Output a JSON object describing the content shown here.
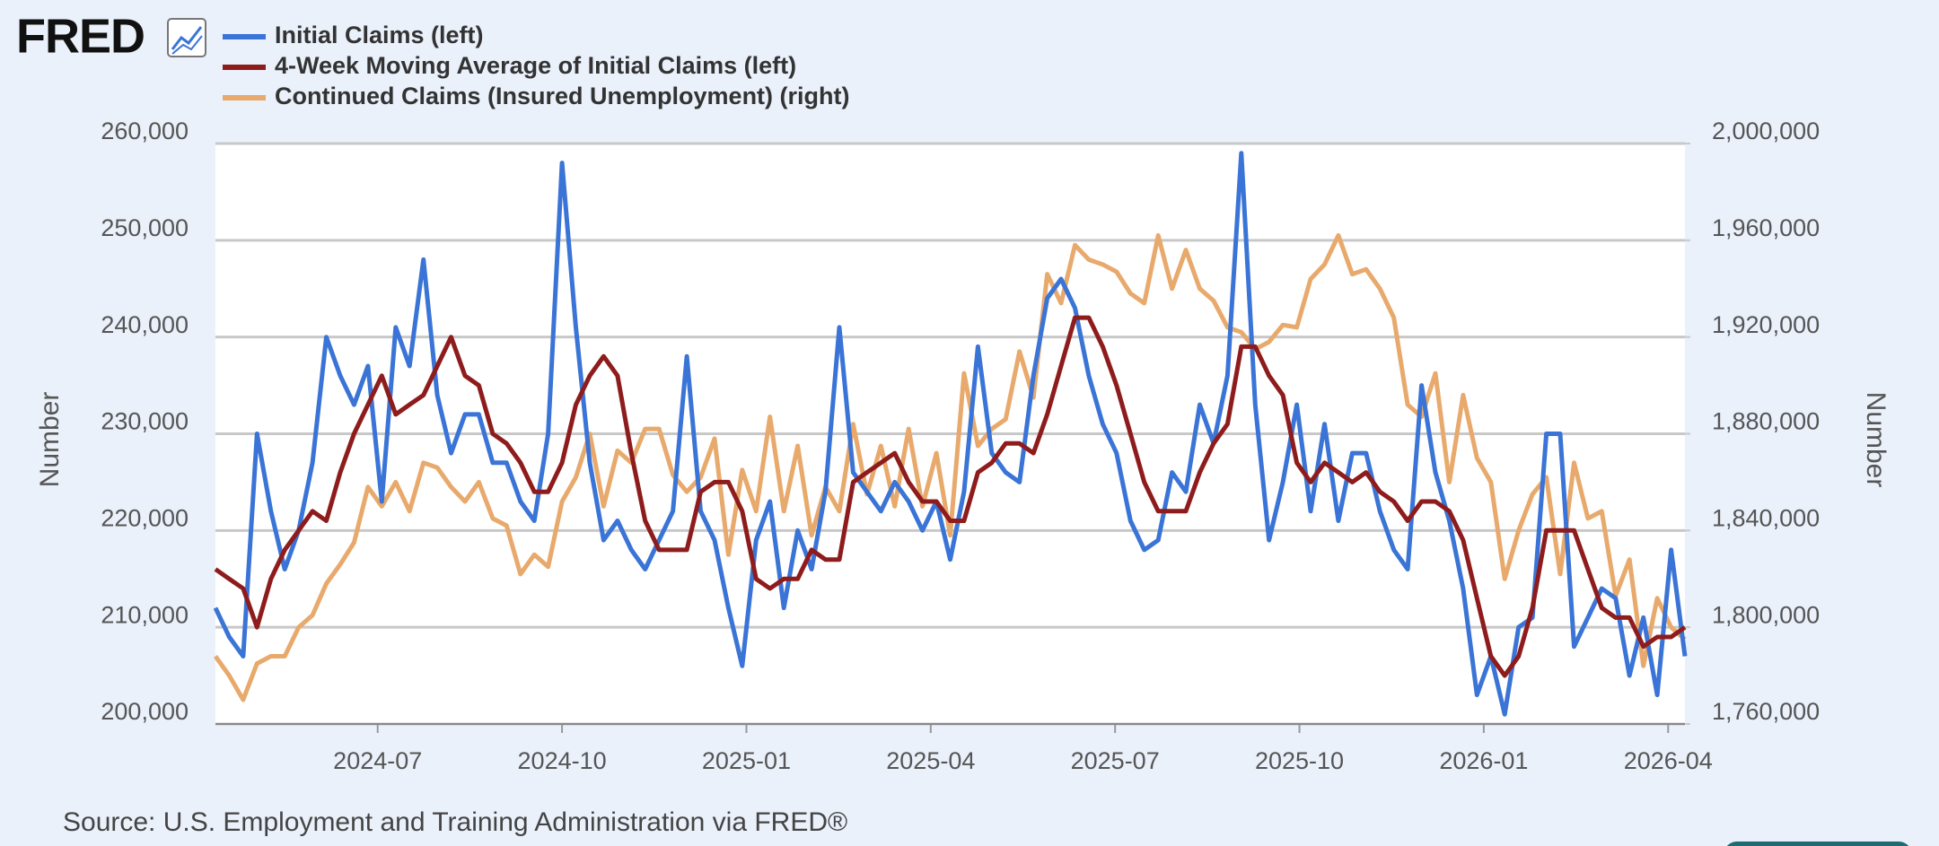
{
  "chart_data": {
    "type": "line",
    "logo": "FRED",
    "source": "Source: U.S. Employment and Training Administration via FRED®",
    "ylabel": "Number",
    "y2label": "Number",
    "legend": "top-left",
    "grid": true,
    "x": [
      2024.28,
      2024.2988,
      2024.3176,
      2024.3364,
      2024.3552,
      2024.374,
      2024.3928,
      2024.4116,
      2024.4304,
      2024.4492,
      2024.468,
      2024.4868,
      2024.5056,
      2024.5244,
      2024.5432,
      2024.562,
      2024.5808,
      2024.5996,
      2024.6184,
      2024.6372,
      2024.656,
      2024.6748,
      2024.6936,
      2024.7124,
      2024.7312,
      2024.75,
      2024.7688,
      2024.7876,
      2024.8064,
      2024.8252,
      2024.844,
      2024.8628,
      2024.8816,
      2024.9004,
      2024.9192,
      2024.938,
      2024.9568,
      2024.9756,
      2024.9944,
      2025.0132,
      2025.032,
      2025.0508,
      2025.0696,
      2025.0884,
      2025.1072,
      2025.126,
      2025.1448,
      2025.1636,
      2025.1824,
      2025.2012,
      2025.22,
      2025.2388,
      2025.2576,
      2025.2764,
      2025.2952,
      2025.314,
      2025.3328,
      2025.3516,
      2025.3704,
      2025.3892,
      2025.408,
      2025.4268,
      2025.4456,
      2025.4644,
      2025.4832,
      2025.502,
      2025.5208,
      2025.5396,
      2025.5584,
      2025.5772,
      2025.596,
      2025.6148,
      2025.6336,
      2025.6524,
      2025.6712,
      2025.69,
      2025.7088,
      2025.7276,
      2025.7464,
      2025.7652,
      2025.784,
      2025.8028,
      2025.8216,
      2025.8404,
      2025.8592,
      2025.878,
      2025.8968,
      2025.9156,
      2025.9344,
      2025.9532,
      2025.972,
      2025.9908,
      2026.0096,
      2026.0284,
      2026.0472,
      2026.066,
      2026.0848,
      2026.1036,
      2026.1224,
      2026.1412,
      2026.16,
      2026.1788,
      2026.1976,
      2026.2164,
      2026.2352,
      2026.254,
      2026.2728
    ],
    "xlim": [
      2024.28,
      2026.2728
    ],
    "xticks": [
      {
        "value": 2024.5,
        "label": "2024-07"
      },
      {
        "value": 2024.75,
        "label": "2024-10"
      },
      {
        "value": 2025.0,
        "label": "2025-01"
      },
      {
        "value": 2025.25,
        "label": "2025-04"
      },
      {
        "value": 2025.5,
        "label": "2025-07"
      },
      {
        "value": 2025.75,
        "label": "2025-10"
      },
      {
        "value": 2026.0,
        "label": "2026-01"
      },
      {
        "value": 2026.25,
        "label": "2026-04"
      }
    ],
    "ylim": [
      200000,
      260000
    ],
    "yticks": [
      {
        "value": 200000,
        "label": "200,000"
      },
      {
        "value": 210000,
        "label": "210,000"
      },
      {
        "value": 220000,
        "label": "220,000"
      },
      {
        "value": 230000,
        "label": "230,000"
      },
      {
        "value": 240000,
        "label": "240,000"
      },
      {
        "value": 250000,
        "label": "250,000"
      },
      {
        "value": 260000,
        "label": "260,000"
      }
    ],
    "y2lim": [
      1760000,
      2000000
    ],
    "y2ticks": [
      {
        "value": 1760000,
        "label": "1,760,000"
      },
      {
        "value": 1800000,
        "label": "1,800,000"
      },
      {
        "value": 1840000,
        "label": "1,840,000"
      },
      {
        "value": 1880000,
        "label": "1,880,000"
      },
      {
        "value": 1920000,
        "label": "1,920,000"
      },
      {
        "value": 1960000,
        "label": "1,960,000"
      },
      {
        "value": 2000000,
        "label": "2,000,000"
      }
    ],
    "series": [
      {
        "name": "Initial Claims (left)",
        "color": "#3a74d6",
        "axis": "y",
        "values": [
          212000,
          209000,
          207000,
          230000,
          222000,
          216000,
          220000,
          227000,
          240000,
          236000,
          233000,
          237000,
          223000,
          241000,
          237000,
          248000,
          234000,
          228000,
          232000,
          232000,
          227000,
          227000,
          223000,
          221000,
          230000,
          258000,
          241000,
          227000,
          219000,
          221000,
          218000,
          216000,
          219000,
          222000,
          238000,
          222000,
          219000,
          212000,
          206000,
          219000,
          223000,
          212000,
          220000,
          216000,
          224000,
          241000,
          226000,
          224000,
          222000,
          225000,
          223000,
          220000,
          223000,
          217000,
          224000,
          239000,
          228000,
          226000,
          225000,
          236000,
          244000,
          246000,
          243000,
          236000,
          231000,
          228000,
          221000,
          218000,
          219000,
          226000,
          224000,
          233000,
          229000,
          236000,
          259000,
          233000,
          219000,
          225000,
          233000,
          222000,
          231000,
          221000,
          228000,
          228000,
          222000,
          218000,
          216000,
          235000,
          226000,
          221000,
          214000,
          203000,
          207000,
          201000,
          210000,
          211000,
          230000,
          230000,
          208000,
          211000,
          214000,
          213000,
          205000,
          211000,
          203000,
          218000,
          207000
        ]
      },
      {
        "name": "4-Week Moving Average of Initial Claims (left)",
        "color": "#8e1c1c",
        "axis": "y",
        "values": [
          216000,
          215000,
          214000,
          210000,
          215000,
          218000,
          220000,
          222000,
          221000,
          226000,
          230000,
          233000,
          236000,
          232000,
          233000,
          234000,
          237000,
          240000,
          236000,
          235000,
          230000,
          229000,
          227000,
          224000,
          224000,
          227000,
          233000,
          236000,
          238000,
          236000,
          228000,
          221000,
          218000,
          218000,
          218000,
          224000,
          225000,
          225000,
          222000,
          215000,
          214000,
          215000,
          215000,
          218000,
          217000,
          217000,
          225000,
          226000,
          227000,
          228000,
          225000,
          223000,
          223000,
          221000,
          221000,
          226000,
          227000,
          229000,
          229000,
          228000,
          232000,
          237000,
          242000,
          242000,
          239000,
          235000,
          230000,
          225000,
          222000,
          222000,
          222000,
          226000,
          229000,
          231000,
          239000,
          239000,
          236000,
          234000,
          227000,
          225000,
          227000,
          226000,
          225000,
          226000,
          224000,
          223000,
          221000,
          223000,
          223000,
          222000,
          219000,
          213000,
          207000,
          205000,
          207000,
          212000,
          220000,
          220000,
          220000,
          216000,
          212000,
          211000,
          211000,
          208000,
          209000,
          209000,
          210000
        ]
      },
      {
        "name": "Continued Claims (Insured Unemployment) (right)",
        "color": "#e8a96c",
        "axis": "y2",
        "values": [
          1788000,
          1780000,
          1770000,
          1785000,
          1788000,
          1788000,
          1800000,
          1805000,
          1818000,
          1826000,
          1835000,
          1858000,
          1850000,
          1860000,
          1848000,
          1868000,
          1866000,
          1858000,
          1852000,
          1860000,
          1845000,
          1842000,
          1822000,
          1830000,
          1825000,
          1852000,
          1862000,
          1880000,
          1850000,
          1873000,
          1868000,
          1882000,
          1882000,
          1863000,
          1856000,
          1862000,
          1878000,
          1830000,
          1865000,
          1848000,
          1887000,
          1848000,
          1875000,
          1838000,
          1858000,
          1848000,
          1884000,
          1855000,
          1875000,
          1850000,
          1882000,
          1850000,
          1872000,
          1838000,
          1905000,
          1875000,
          1882000,
          1886000,
          1914000,
          1895000,
          1946000,
          1934000,
          1958000,
          1952000,
          1950000,
          1947000,
          1938000,
          1934000,
          1962000,
          1940000,
          1956000,
          1940000,
          1935000,
          1924000,
          1922000,
          1915000,
          1918000,
          1925000,
          1924000,
          1944000,
          1950000,
          1962000,
          1946000,
          1948000,
          1940000,
          1928000,
          1892000,
          1887000,
          1905000,
          1860000,
          1896000,
          1870000,
          1860000,
          1820000,
          1840000,
          1855000,
          1862000,
          1822000,
          1868000,
          1845000,
          1848000,
          1813000,
          1828000,
          1784000,
          1812000,
          1800000,
          1795000
        ]
      }
    ]
  }
}
